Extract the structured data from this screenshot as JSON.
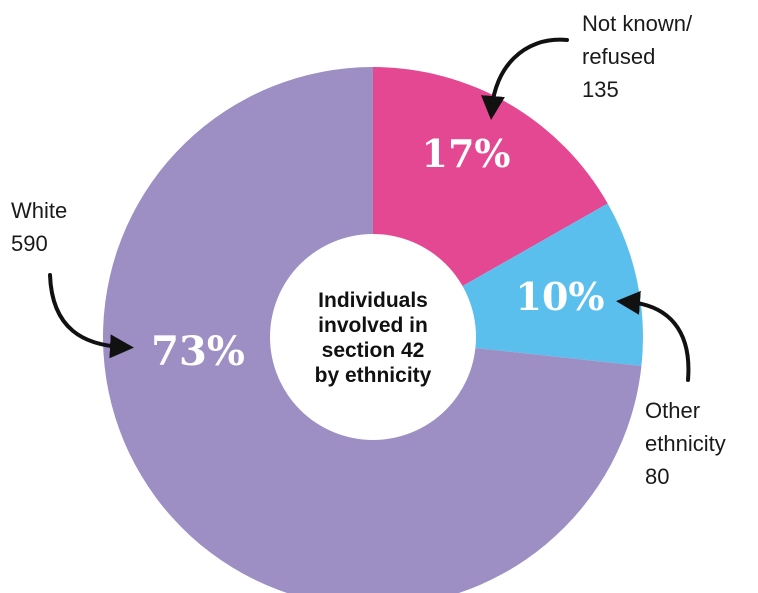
{
  "chart_data": {
    "type": "pie",
    "center_label": [
      "Individuals",
      "involved in",
      "section 42",
      "by ethnicity"
    ],
    "slices": [
      {
        "key": "not_known",
        "label_lines": [
          "Not known/",
          "refused"
        ],
        "value": 135,
        "percent_label": "17%",
        "color": "#e54893"
      },
      {
        "key": "other",
        "label_lines": [
          "Other",
          "ethnicity"
        ],
        "value": 80,
        "percent_label": "10%",
        "color": "#5bbfed"
      },
      {
        "key": "white",
        "label_lines": [
          "White"
        ],
        "value": 590,
        "percent_label": "73%",
        "color": "#9d8fc4"
      }
    ]
  }
}
